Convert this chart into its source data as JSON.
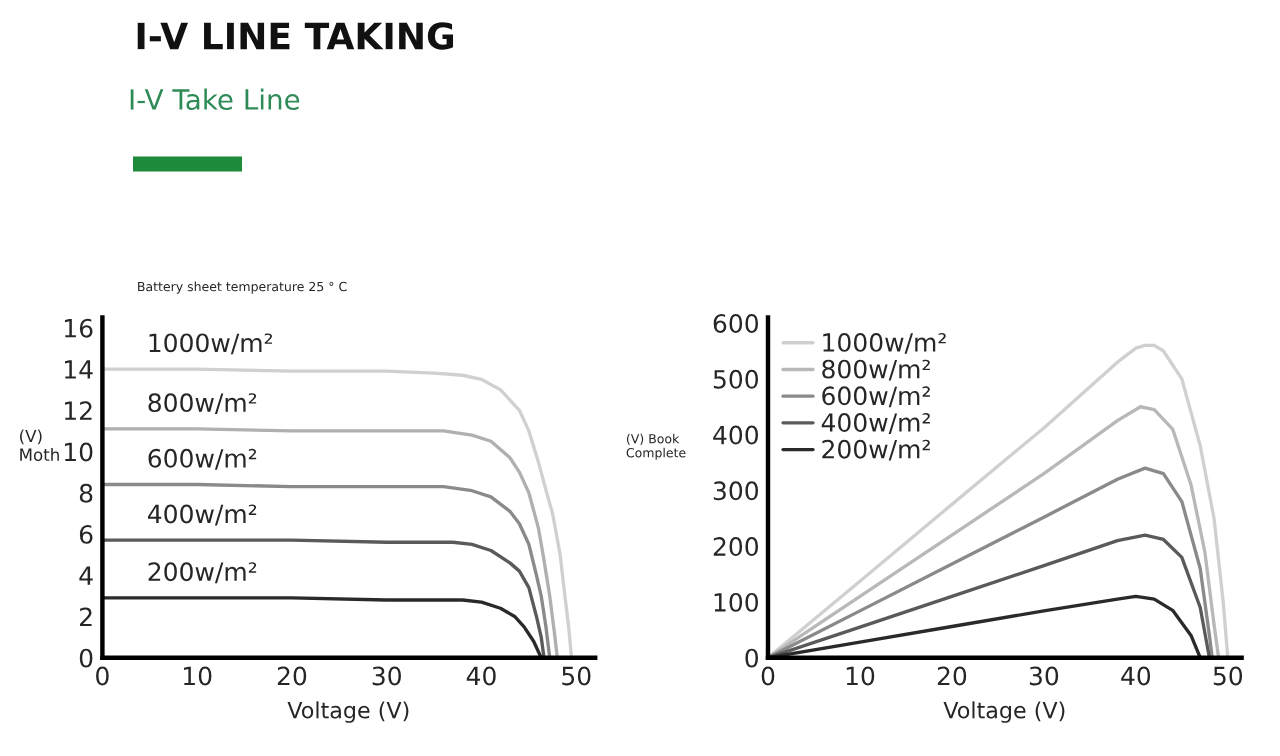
{
  "chart_data": [
    {
      "type": "line",
      "title": "I-V LINE TAKING",
      "subtitle": "I-V Take Line",
      "xlabel": "Voltage (V)",
      "ylabel": "(V)\nMoth",
      "annotations": [
        "Battery sheet temperature 25 ° C"
      ],
      "xlim": [
        0,
        52
      ],
      "ylim": [
        0,
        16.5
      ],
      "xticks": [
        0,
        10,
        20,
        30,
        40,
        50
      ],
      "yticks": [
        0,
        2,
        4,
        6,
        8,
        10,
        12,
        14,
        16
      ],
      "grid": false,
      "legend": false,
      "marker": "none",
      "line_style": "solid",
      "series": [
        {
          "name": "1000w/m²",
          "color": "#d0d0d0",
          "x": [
            0,
            10,
            20,
            30,
            35,
            38,
            40,
            42,
            44,
            45,
            46,
            47,
            47.5,
            48.3,
            48.8,
            49.2,
            49.5
          ],
          "values": [
            14,
            14,
            13.9,
            13.9,
            13.8,
            13.7,
            13.5,
            13,
            12,
            11,
            9.5,
            7.8,
            7,
            5,
            3,
            1.5,
            0
          ]
        },
        {
          "name": "800w/m²",
          "color": "#b0b0b0",
          "x": [
            0,
            10,
            20,
            30,
            36,
            39,
            41,
            43,
            44,
            45,
            46,
            46.5,
            47.2,
            47.7,
            48
          ],
          "values": [
            11.1,
            11.1,
            11,
            11,
            11,
            10.8,
            10.5,
            9.7,
            9,
            8,
            6.3,
            5,
            3,
            1.2,
            0
          ]
        },
        {
          "name": "600w/m²",
          "color": "#8a8a8a",
          "x": [
            0,
            10,
            20,
            30,
            36,
            39,
            41,
            43,
            44,
            45,
            45.8,
            46.3,
            46.8,
            47.2
          ],
          "values": [
            8.4,
            8.4,
            8.3,
            8.3,
            8.3,
            8.1,
            7.8,
            7.1,
            6.5,
            5.5,
            4,
            3,
            1.5,
            0
          ]
        },
        {
          "name": "400w/m²",
          "color": "#5a5a5a",
          "x": [
            0,
            10,
            20,
            30,
            37,
            39,
            41,
            43,
            44,
            45,
            45.8,
            46.3,
            46.6
          ],
          "values": [
            5.7,
            5.7,
            5.7,
            5.6,
            5.6,
            5.5,
            5.2,
            4.6,
            4.2,
            3.4,
            2,
            1,
            0
          ]
        },
        {
          "name": "200w/m²",
          "color": "#2a2a2a",
          "x": [
            0,
            10,
            20,
            30,
            38,
            40,
            42,
            43.5,
            44.5,
            45.5,
            46,
            46.3
          ],
          "values": [
            2.9,
            2.9,
            2.9,
            2.8,
            2.8,
            2.7,
            2.4,
            2,
            1.5,
            0.8,
            0.3,
            0
          ]
        }
      ]
    },
    {
      "type": "line",
      "xlabel": "Voltage (V)",
      "ylabel": "(V) Book\nComplete",
      "xlim": [
        0,
        51.5
      ],
      "ylim": [
        0,
        610
      ],
      "xticks": [
        0,
        10,
        20,
        30,
        40,
        50
      ],
      "yticks": [
        0,
        100,
        200,
        300,
        400,
        500,
        600
      ],
      "grid": false,
      "legend": "top left",
      "marker": "none",
      "line_style": "solid",
      "series": [
        {
          "name": "1000w/m²",
          "color": "#d0d0d0",
          "x": [
            0,
            10,
            20,
            30,
            38,
            40,
            41,
            42,
            43,
            45,
            47,
            48.5,
            49.5,
            50
          ],
          "values": [
            0,
            137,
            275,
            412,
            530,
            555,
            560,
            560,
            550,
            500,
            380,
            250,
            100,
            0
          ]
        },
        {
          "name": "800w/m²",
          "color": "#b8b8b8",
          "x": [
            0,
            10,
            20,
            30,
            38,
            40.5,
            42,
            44,
            46,
            47.5,
            48.5,
            49
          ],
          "values": [
            0,
            110,
            220,
            330,
            425,
            450,
            445,
            410,
            310,
            190,
            60,
            0
          ]
        },
        {
          "name": "600w/m²",
          "color": "#8a8a8a",
          "x": [
            0,
            10,
            20,
            30,
            38,
            41,
            43,
            45,
            47,
            48,
            48.3
          ],
          "values": [
            0,
            84,
            168,
            252,
            320,
            340,
            330,
            280,
            160,
            40,
            0
          ]
        },
        {
          "name": "400w/m²",
          "color": "#5a5a5a",
          "x": [
            0,
            10,
            20,
            30,
            38,
            41,
            43,
            45,
            47,
            48
          ],
          "values": [
            0,
            55,
            110,
            165,
            210,
            220,
            212,
            180,
            90,
            0
          ]
        },
        {
          "name": "200w/m²",
          "color": "#2a2a2a",
          "x": [
            0,
            10,
            20,
            30,
            38,
            40,
            42,
            44,
            46,
            47
          ],
          "values": [
            0,
            28,
            56,
            84,
            105,
            110,
            105,
            85,
            40,
            0
          ]
        }
      ]
    }
  ]
}
